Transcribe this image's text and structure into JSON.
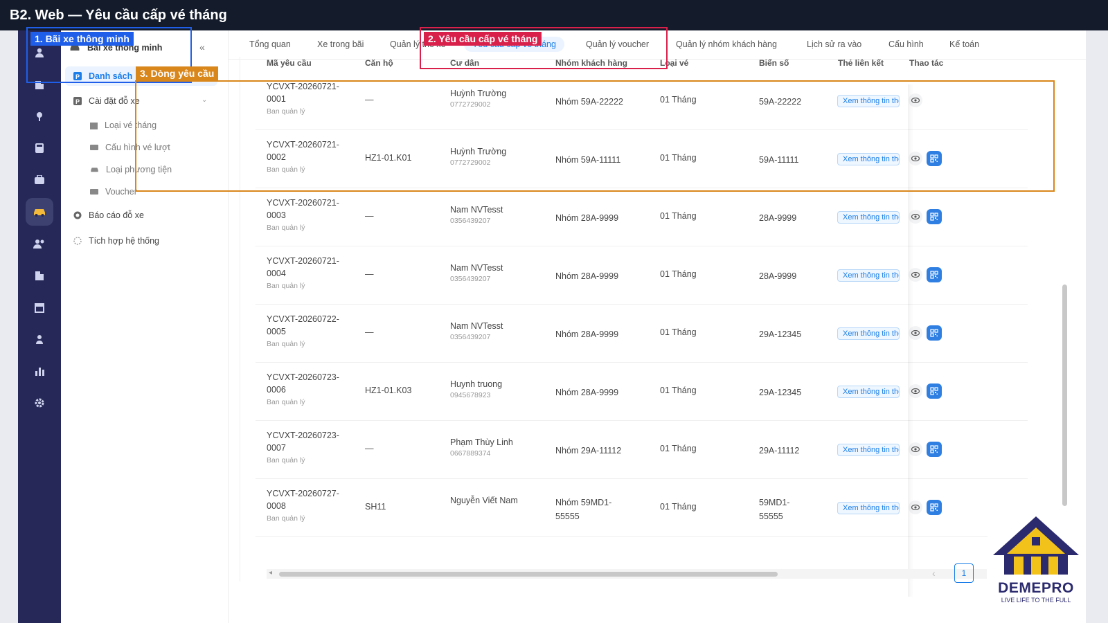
{
  "title": "B2. Web — Yêu cầu cấp vé tháng",
  "sidebar": {
    "collapse": "«",
    "items": [
      {
        "label": "Bãi xe thông minh"
      },
      {
        "label": "Danh sách"
      },
      {
        "label": "Cài đặt đỗ xe"
      },
      {
        "label": "Loại vé tháng"
      },
      {
        "label": "Cấu hình vé lượt"
      },
      {
        "label": "Loại phương tiện"
      },
      {
        "label": "Voucher"
      },
      {
        "label": "Báo cáo đỗ xe"
      },
      {
        "label": "Tích hợp hệ thống"
      }
    ]
  },
  "tabs": [
    {
      "label": "Tổng quan"
    },
    {
      "label": "Xe trong bãi"
    },
    {
      "label": "Quản lý thẻ xe"
    },
    {
      "label": "Yêu cầu cấp vé tháng"
    },
    {
      "label": "Quản lý voucher"
    },
    {
      "label": "Quản lý nhóm khách hàng"
    },
    {
      "label": "Lịch sử ra vào"
    },
    {
      "label": "Cấu hình"
    },
    {
      "label": "Kế toán"
    }
  ],
  "table": {
    "headers": [
      "Mã yêu cầu",
      "Căn hộ",
      "Cư dân",
      "Nhóm khách hàng",
      "Loại vé",
      "Biển số",
      "Thẻ liên kết",
      "Thao tác"
    ],
    "link_label": "Xem thông tin thẻ",
    "rows": [
      {
        "code1": "YCVXT-20260721-",
        "code2": "0001",
        "creator": "Ban quản lý",
        "apt": "—",
        "name": "Huỳnh Trường",
        "phone": "0772729002",
        "group": "Nhóm 59A-22222",
        "ticket": "01 Tháng",
        "plate": "59A-22222"
      },
      {
        "code1": "YCVXT-20260721-",
        "code2": "0002",
        "creator": "Ban quản lý",
        "apt": "HZ1-01.K01",
        "name": "Huỳnh Trường",
        "phone": "0772729002",
        "group": "Nhóm 59A-11111",
        "ticket": "01 Tháng",
        "plate": "59A-11111"
      },
      {
        "code1": "YCVXT-20260721-",
        "code2": "0003",
        "creator": "Ban quản lý",
        "apt": "—",
        "name": "Nam NVTesst",
        "phone": "0356439207",
        "group": "Nhóm 28A-9999",
        "ticket": "01 Tháng",
        "plate": "28A-9999"
      },
      {
        "code1": "YCVXT-20260721-",
        "code2": "0004",
        "creator": "Ban quản lý",
        "apt": "—",
        "name": "Nam NVTesst",
        "phone": "0356439207",
        "group": "Nhóm 28A-9999",
        "ticket": "01 Tháng",
        "plate": "28A-9999"
      },
      {
        "code1": "YCVXT-20260722-",
        "code2": "0005",
        "creator": "Ban quản lý",
        "apt": "—",
        "name": "Nam NVTesst",
        "phone": "0356439207",
        "group": "Nhóm 28A-9999",
        "ticket": "01 Tháng",
        "plate": "29A-12345"
      },
      {
        "code1": "YCVXT-20260723-",
        "code2": "0006",
        "creator": "Ban quản lý",
        "apt": "HZ1-01.K03",
        "name": "Huynh truong",
        "phone": "0945678923",
        "group": "Nhóm 28A-9999",
        "ticket": "01 Tháng",
        "plate": "29A-12345"
      },
      {
        "code1": "YCVXT-20260723-",
        "code2": "0007",
        "creator": "Ban quản lý",
        "apt": "—",
        "name": "Phạm Thùy Linh",
        "phone": "0667889374",
        "group": "Nhóm 29A-11112",
        "ticket": "01 Tháng",
        "plate": "29A-11112"
      },
      {
        "code1": "YCVXT-20260727-",
        "code2": "0008",
        "creator": "Ban quản lý",
        "apt": "SH11",
        "name": "Nguyễn Viết Nam",
        "phone": "",
        "group": "Nhóm 59MD1-55555",
        "ticket": "01 Tháng",
        "plate": "59MD1-55555"
      }
    ]
  },
  "pagination": {
    "prev": "‹",
    "current": "1"
  },
  "annotations": {
    "a1": "1. Bãi xe thông minh",
    "a2": "2. Yêu cầu cấp vé tháng",
    "a3": "3. Dòng yêu cầu",
    "colors": {
      "a1": "#1f5ee8",
      "a2": "#d8204b",
      "a3": "#d9861a"
    }
  },
  "logo": {
    "name": "DEMEPRO",
    "tagline": "LIVE LIFE TO THE FULL"
  },
  "colors": {
    "primary": "#1a7de8",
    "rail": "#262958",
    "title_bar": "#141c2c",
    "accent_car": "#f3b93a"
  }
}
